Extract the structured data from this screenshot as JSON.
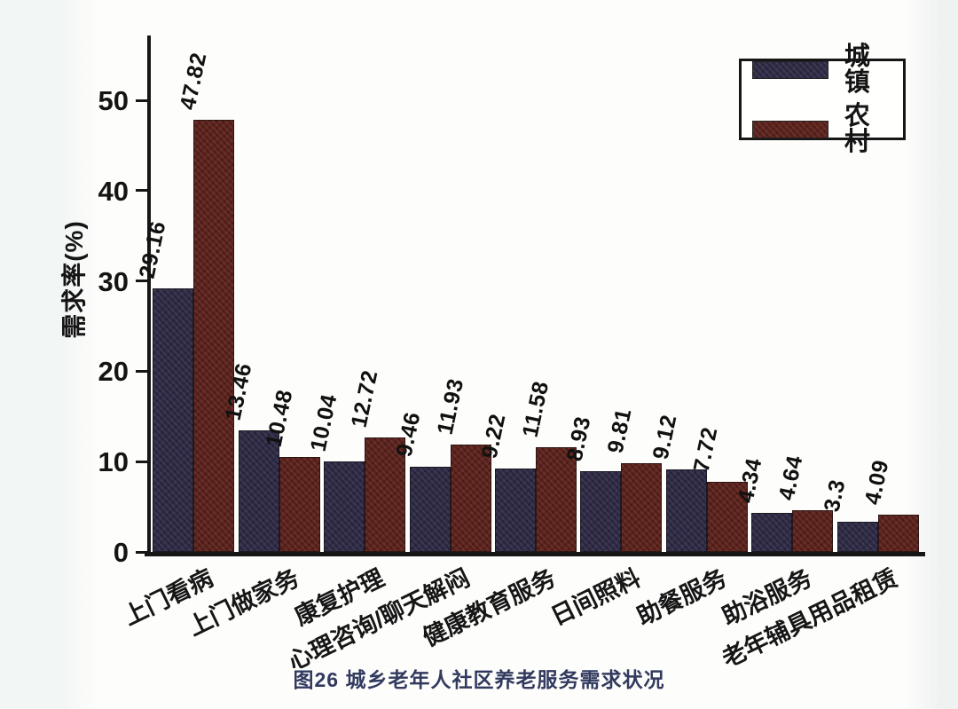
{
  "figure": {
    "caption": "图26 城乡老年人社区养老服务需求状况"
  },
  "chart_data": {
    "type": "bar",
    "title": "",
    "xlabel": "",
    "ylabel": "需求率(%)",
    "ylim": [
      0,
      50
    ],
    "yticks": [
      0,
      10,
      20,
      30,
      40,
      50
    ],
    "grid": false,
    "legend_position": "top-right",
    "categories": [
      "上门看病",
      "上门做家务",
      "康复护理",
      "心理咨询/聊天解闷",
      "健康教育服务",
      "日间照料",
      "助餐服务",
      "助浴服务",
      "老年辅具用品租赁"
    ],
    "series": [
      {
        "name": "城镇",
        "color": "#2e2a45",
        "values": [
          29.16,
          13.46,
          10.04,
          9.46,
          9.22,
          8.93,
          9.12,
          4.34,
          3.3
        ]
      },
      {
        "name": "农村",
        "color": "#5c211b",
        "values": [
          47.82,
          10.48,
          12.72,
          11.93,
          11.58,
          9.81,
          7.72,
          4.64,
          4.09
        ]
      }
    ]
  }
}
